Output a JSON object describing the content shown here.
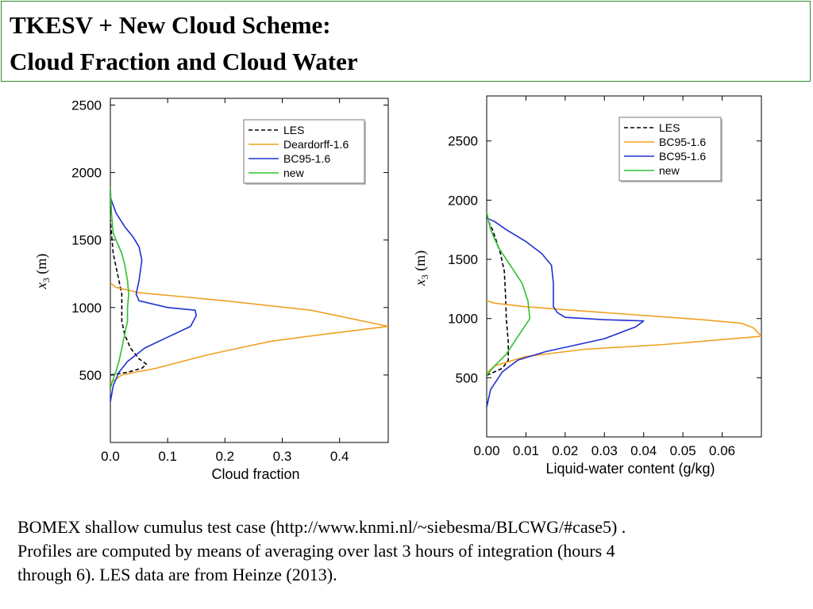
{
  "title": {
    "line1": "TKESV + New Cloud Scheme:",
    "line2": "Cloud Fraction and Cloud Water"
  },
  "caption": {
    "line1": "BOMEX shallow cumulus test case (http://www.knmi.nl/~siebesma/BLCWG/#case5) .",
    "line2": "Profiles are computed by means of averaging over last 3 hours of integration (hours 4",
    "line3": "through 6). LES data are from Heinze (2013)."
  },
  "chart_data": [
    {
      "type": "line",
      "xlabel": "Cloud fraction",
      "ylabel_var": "x",
      "ylabel_sub": "3",
      "ylabel_unit": "(m)",
      "xlim": [
        0,
        0.485
      ],
      "ylim": [
        0,
        2550
      ],
      "xticks": [
        0.0,
        0.1,
        0.2,
        0.3,
        0.4
      ],
      "xtick_labels": [
        "0.0",
        "0.1",
        "0.2",
        "0.3",
        "0.4"
      ],
      "yticks": [
        500,
        1000,
        1500,
        2000,
        2500
      ],
      "ytick_labels": [
        "500",
        "1000",
        "1500",
        "2000",
        "2500"
      ],
      "legend_position": "top-right",
      "series": [
        {
          "name": "LES",
          "color": "#000000",
          "dashed": true,
          "points": [
            [
              0.0,
              500
            ],
            [
              0.03,
              520
            ],
            [
              0.055,
              550
            ],
            [
              0.063,
              580
            ],
            [
              0.05,
              620
            ],
            [
              0.035,
              700
            ],
            [
              0.025,
              800
            ],
            [
              0.02,
              900
            ],
            [
              0.02,
              1000
            ],
            [
              0.02,
              1100
            ],
            [
              0.015,
              1200
            ],
            [
              0.01,
              1300
            ],
            [
              0.005,
              1400
            ],
            [
              0.002,
              1550
            ],
            [
              0.0,
              1650
            ]
          ]
        },
        {
          "name": "Deardorff-1.6",
          "color": "#f0a020",
          "dashed": false,
          "points": [
            [
              0.0,
              440
            ],
            [
              0.02,
              500
            ],
            [
              0.08,
              550
            ],
            [
              0.17,
              650
            ],
            [
              0.28,
              750
            ],
            [
              0.37,
              800
            ],
            [
              0.485,
              860
            ],
            [
              0.35,
              980
            ],
            [
              0.2,
              1050
            ],
            [
              0.05,
              1110
            ],
            [
              0.01,
              1150
            ],
            [
              0.0,
              1180
            ]
          ]
        },
        {
          "name": "BC95-1.6",
          "color": "#2030d0",
          "dashed": false,
          "points": [
            [
              0.0,
              300
            ],
            [
              0.005,
              420
            ],
            [
              0.015,
              520
            ],
            [
              0.03,
              600
            ],
            [
              0.06,
              700
            ],
            [
              0.1,
              780
            ],
            [
              0.14,
              860
            ],
            [
              0.15,
              940
            ],
            [
              0.148,
              980
            ],
            [
              0.1,
              1000
            ],
            [
              0.05,
              1050
            ],
            [
              0.045,
              1100
            ],
            [
              0.05,
              1200
            ],
            [
              0.055,
              1350
            ],
            [
              0.05,
              1450
            ],
            [
              0.04,
              1520
            ],
            [
              0.025,
              1600
            ],
            [
              0.01,
              1700
            ],
            [
              0.003,
              1780
            ],
            [
              0.0,
              1820
            ]
          ]
        },
        {
          "name": "new",
          "color": "#30c030",
          "dashed": false,
          "points": [
            [
              0.0,
              400
            ],
            [
              0.005,
              470
            ],
            [
              0.01,
              530
            ],
            [
              0.015,
              600
            ],
            [
              0.02,
              700
            ],
            [
              0.025,
              800
            ],
            [
              0.03,
              900
            ],
            [
              0.03,
              1000
            ],
            [
              0.032,
              1100
            ],
            [
              0.03,
              1200
            ],
            [
              0.025,
              1320
            ],
            [
              0.02,
              1400
            ],
            [
              0.015,
              1450
            ],
            [
              0.005,
              1550
            ],
            [
              0.002,
              1700
            ],
            [
              0.0,
              1900
            ]
          ]
        }
      ]
    },
    {
      "type": "line",
      "xlabel": "Liquid-water content (g/kg)",
      "ylabel_var": "x",
      "ylabel_sub": "3",
      "ylabel_unit": "(m)",
      "xlim": [
        0,
        0.07
      ],
      "ylim": [
        0,
        2880
      ],
      "xticks": [
        0.0,
        0.01,
        0.02,
        0.03,
        0.04,
        0.05,
        0.06
      ],
      "xtick_labels": [
        "0.00",
        "0.01",
        "0.02",
        "0.03",
        "0.04",
        "0.05",
        "0.06"
      ],
      "yticks": [
        500,
        1000,
        1500,
        2000,
        2500
      ],
      "ytick_labels": [
        "500",
        "1000",
        "1500",
        "2000",
        "2500"
      ],
      "legend_position": "top-right",
      "series": [
        {
          "name": "LES",
          "color": "#000000",
          "dashed": true,
          "points": [
            [
              0.0,
              520
            ],
            [
              0.004,
              580
            ],
            [
              0.0055,
              650
            ],
            [
              0.0055,
              800
            ],
            [
              0.005,
              1000
            ],
            [
              0.0048,
              1200
            ],
            [
              0.0045,
              1400
            ],
            [
              0.0035,
              1550
            ],
            [
              0.0025,
              1650
            ],
            [
              0.0015,
              1750
            ],
            [
              0.0,
              1850
            ]
          ]
        },
        {
          "name": "BC95-1.6",
          "color": "#f0a020",
          "dashed": false,
          "points": [
            [
              0.0,
              540
            ],
            [
              0.002,
              600
            ],
            [
              0.01,
              680
            ],
            [
              0.025,
              740
            ],
            [
              0.045,
              780
            ],
            [
              0.07,
              850
            ],
            [
              0.068,
              920
            ],
            [
              0.065,
              960
            ],
            [
              0.055,
              990
            ],
            [
              0.03,
              1050
            ],
            [
              0.01,
              1100
            ],
            [
              0.002,
              1130
            ],
            [
              0.0,
              1150
            ]
          ]
        },
        {
          "name": "BC95-1.6",
          "color": "#2030d0",
          "dashed": false,
          "points": [
            [
              0.0,
              250
            ],
            [
              0.001,
              400
            ],
            [
              0.004,
              550
            ],
            [
              0.008,
              650
            ],
            [
              0.015,
              720
            ],
            [
              0.03,
              830
            ],
            [
              0.038,
              930
            ],
            [
              0.04,
              980
            ],
            [
              0.03,
              990
            ],
            [
              0.02,
              1010
            ],
            [
              0.018,
              1050
            ],
            [
              0.017,
              1100
            ],
            [
              0.017,
              1300
            ],
            [
              0.0165,
              1450
            ],
            [
              0.014,
              1550
            ],
            [
              0.01,
              1650
            ],
            [
              0.005,
              1750
            ],
            [
              0.002,
              1820
            ],
            [
              0.0,
              1850
            ]
          ]
        },
        {
          "name": "new",
          "color": "#30c030",
          "dashed": false,
          "points": [
            [
              0.0,
              520
            ],
            [
              0.002,
              600
            ],
            [
              0.005,
              700
            ],
            [
              0.008,
              850
            ],
            [
              0.011,
              1000
            ],
            [
              0.0105,
              1150
            ],
            [
              0.009,
              1300
            ],
            [
              0.006,
              1450
            ],
            [
              0.003,
              1600
            ],
            [
              0.001,
              1750
            ],
            [
              0.0,
              1900
            ]
          ]
        }
      ]
    }
  ]
}
